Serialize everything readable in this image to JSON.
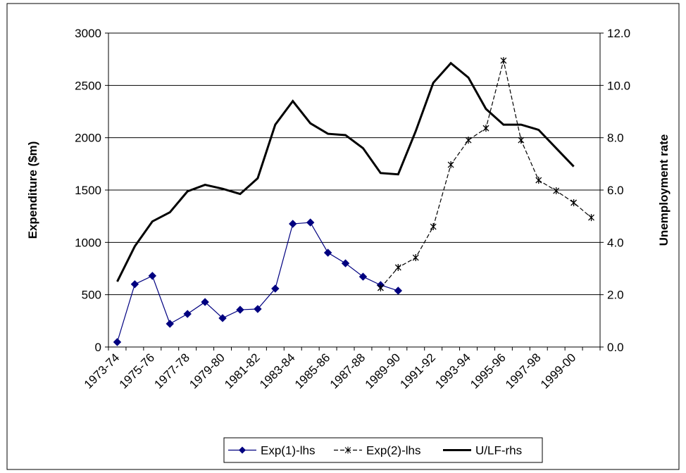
{
  "chart_data": {
    "type": "line",
    "categories": [
      "1973-74",
      null,
      "1975-76",
      null,
      "1977-78",
      null,
      "1979-80",
      null,
      "1981-82",
      null,
      "1983-84",
      null,
      "1985-86",
      null,
      "1987-88",
      null,
      "1989-90",
      null,
      "1991-92",
      null,
      "1993-94",
      null,
      "1995-96",
      null,
      "1997-98",
      null,
      "1999-00",
      null
    ],
    "y_label": "Expenditure ($m)",
    "y2_label": "Unemployment rate",
    "ylim": [
      0,
      3000
    ],
    "yticks": [
      0,
      500,
      1000,
      1500,
      2000,
      2500,
      3000
    ],
    "y2lim": [
      0,
      12
    ],
    "y2ticks": [
      {
        "value": 0,
        "label": "0.0"
      },
      {
        "value": 2,
        "label": "2.0"
      },
      {
        "value": 4,
        "label": "4.0"
      },
      {
        "value": 6,
        "label": "6.0"
      },
      {
        "value": 8,
        "label": "8.0"
      },
      {
        "value": 10,
        "label": "10.0"
      },
      {
        "value": 12,
        "label": "12.0"
      }
    ],
    "grid": true,
    "legend": "bottom",
    "series": [
      {
        "name": "Exp(1)-lhs",
        "color": "#000080",
        "marker": "diamond",
        "values": [
          47,
          600,
          680,
          222,
          316,
          430,
          276,
          356,
          363,
          558,
          1177,
          1190,
          901,
          800,
          672,
          592,
          538,
          null,
          null,
          null,
          null,
          null,
          null,
          null,
          null,
          null,
          null,
          null
        ]
      },
      {
        "name": "Exp(2)-lhs",
        "color": "#000000",
        "marker": "star",
        "values": [
          null,
          null,
          null,
          null,
          null,
          null,
          null,
          null,
          null,
          null,
          null,
          null,
          null,
          null,
          null,
          565,
          760,
          854,
          1150,
          1742,
          1977,
          2091,
          2737,
          1977,
          1594,
          1493,
          1379,
          1237
        ]
      },
      {
        "name": "U/LF-rhs",
        "color": "#000000",
        "marker": "none",
        "axis": "y2",
        "values": [
          2.5,
          3.85,
          4.8,
          5.15,
          5.95,
          6.2,
          6.05,
          5.85,
          6.45,
          8.5,
          9.4,
          8.55,
          8.15,
          8.1,
          7.6,
          6.65,
          6.6,
          8.25,
          10.1,
          10.85,
          10.3,
          9.1,
          8.5,
          8.5,
          8.3,
          7.6,
          6.9,
          null
        ]
      }
    ]
  }
}
